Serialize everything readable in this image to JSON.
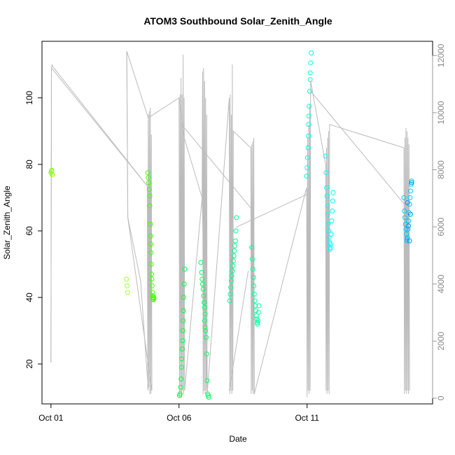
{
  "chart_data": {
    "type": "scatter",
    "title": "ATOM3 Southbound Solar_Zenith_Angle",
    "xlabel": "Date",
    "ylabel": "Solar_Zenith_Angle",
    "x_ticks": [
      {
        "day": 1,
        "label": "Oct 01"
      },
      {
        "day": 6,
        "label": "Oct 06"
      },
      {
        "day": 11,
        "label": "Oct 11"
      }
    ],
    "x_range_days": [
      0.65,
      15.9
    ],
    "ylim": [
      8,
      117
    ],
    "y_ticks": [
      20,
      40,
      60,
      80,
      100
    ],
    "right_axis": {
      "ylim": [
        -200,
        12500
      ],
      "ticks": [
        0,
        2000,
        4000,
        6000,
        8000,
        10000,
        12000
      ],
      "color": "#999999"
    },
    "grid": false,
    "point_colors": {
      "yellowgreen": "#80ff00",
      "green": "#00ff40",
      "lightgreen": "#00ff80",
      "cyan": "#00ffff",
      "skyblue": "#00bfff",
      "blue": "#0080ff"
    },
    "line_color": "#bbbbbb",
    "series": [
      {
        "color": "#80ff00",
        "points": [
          [
            1.0,
            77.5
          ],
          [
            1.02,
            78.0
          ],
          [
            1.05,
            77.0
          ],
          [
            1.03,
            78.2
          ]
        ]
      },
      {
        "color": "#a0ff30",
        "points": [
          [
            3.95,
            45.5
          ],
          [
            3.97,
            43.5
          ],
          [
            3.99,
            41.5
          ]
        ]
      },
      {
        "color": "#40ff00",
        "points": [
          [
            4.78,
            77.5
          ],
          [
            4.8,
            76.0
          ],
          [
            4.82,
            74.5
          ],
          [
            4.84,
            72.5
          ],
          [
            4.86,
            70.5
          ],
          [
            4.86,
            67.5
          ],
          [
            4.88,
            62.0
          ],
          [
            4.89,
            58.5
          ],
          [
            4.9,
            56.0
          ],
          [
            4.91,
            53.5
          ],
          [
            4.92,
            50.0
          ],
          [
            4.93,
            47.0
          ],
          [
            4.94,
            45.5
          ],
          [
            4.95,
            43.5
          ],
          [
            4.96,
            41.5
          ],
          [
            4.97,
            40.5
          ],
          [
            4.98,
            40.0
          ],
          [
            4.99,
            39.5
          ],
          [
            5.0,
            39.3
          ],
          [
            5.01,
            40.0
          ],
          [
            5.02,
            39.8
          ]
        ]
      },
      {
        "color": "#00ff40",
        "points": [
          [
            6.02,
            10.5
          ],
          [
            6.04,
            11.0
          ],
          [
            6.06,
            13.0
          ],
          [
            6.08,
            15.5
          ],
          [
            6.1,
            19.0
          ],
          [
            6.1,
            21.5
          ],
          [
            6.12,
            24.5
          ],
          [
            6.14,
            27.0
          ],
          [
            6.15,
            30.0
          ],
          [
            6.16,
            33.0
          ],
          [
            6.17,
            36.0
          ],
          [
            6.18,
            40.0
          ],
          [
            6.2,
            44.0
          ],
          [
            6.22,
            48.5
          ]
        ]
      },
      {
        "color": "#00ff60",
        "points": [
          [
            6.85,
            50.5
          ],
          [
            6.88,
            47.5
          ],
          [
            6.9,
            45.5
          ],
          [
            6.92,
            44.0
          ],
          [
            6.94,
            42.5
          ],
          [
            6.96,
            40.5
          ],
          [
            6.98,
            38.5
          ],
          [
            7.0,
            37.0
          ],
          [
            7.02,
            35.0
          ],
          [
            7.0,
            33.0
          ],
          [
            7.02,
            31.0
          ],
          [
            7.04,
            30.0
          ],
          [
            7.06,
            28.0
          ],
          [
            7.08,
            23.0
          ],
          [
            7.1,
            15.0
          ],
          [
            7.12,
            11.0
          ],
          [
            7.14,
            10.5
          ],
          [
            7.16,
            10.0
          ]
        ]
      },
      {
        "color": "#00ff90",
        "points": [
          [
            7.98,
            39.0
          ],
          [
            8.0,
            41.0
          ],
          [
            8.02,
            43.0
          ],
          [
            8.04,
            45.0
          ],
          [
            8.06,
            46.5
          ],
          [
            8.08,
            48.0
          ],
          [
            8.1,
            49.5
          ],
          [
            8.12,
            51.0
          ],
          [
            8.14,
            52.5
          ],
          [
            8.16,
            54.0
          ],
          [
            8.18,
            55.5
          ],
          [
            8.2,
            57.0
          ],
          [
            8.22,
            60.0
          ],
          [
            8.24,
            64.0
          ]
        ]
      },
      {
        "color": "#00ffa0",
        "points": [
          [
            8.84,
            55.0
          ],
          [
            8.86,
            51.5
          ],
          [
            8.88,
            48.5
          ],
          [
            8.9,
            46.0
          ],
          [
            8.92,
            43.5
          ],
          [
            8.94,
            41.0
          ],
          [
            8.96,
            39.0
          ],
          [
            8.98,
            37.5
          ],
          [
            9.0,
            36.0
          ],
          [
            9.02,
            34.5
          ],
          [
            9.04,
            33.5
          ],
          [
            9.06,
            32.5
          ],
          [
            9.06,
            32.0
          ],
          [
            9.08,
            33.0
          ],
          [
            9.1,
            35.5
          ],
          [
            9.12,
            37.5
          ]
        ]
      },
      {
        "color": "#00ffe0",
        "points": [
          [
            10.98,
            76.5
          ],
          [
            11.0,
            79.0
          ],
          [
            11.02,
            82.0
          ],
          [
            11.04,
            85.0
          ],
          [
            11.05,
            88.5
          ],
          [
            11.06,
            92.0
          ],
          [
            11.07,
            94.5
          ],
          [
            11.08,
            97.5
          ],
          [
            11.1,
            102.0
          ],
          [
            11.12,
            105.5
          ],
          [
            11.12,
            107.5
          ],
          [
            11.14,
            110.5
          ],
          [
            11.16,
            113.5
          ]
        ]
      },
      {
        "color": "#00ffff",
        "points": [
          [
            11.72,
            82.5
          ],
          [
            11.74,
            77.5
          ],
          [
            11.76,
            73.0
          ],
          [
            11.78,
            70.5
          ],
          [
            11.8,
            67.5
          ],
          [
            11.8,
            65.0
          ],
          [
            11.82,
            62.0
          ],
          [
            11.84,
            60.0
          ],
          [
            11.86,
            58.0
          ],
          [
            11.88,
            56.5
          ],
          [
            11.9,
            55.0
          ],
          [
            11.9,
            54.5
          ],
          [
            11.92,
            56.0
          ],
          [
            11.94,
            59.0
          ],
          [
            11.96,
            63.0
          ],
          [
            11.98,
            66.0
          ],
          [
            12.0,
            69.0
          ],
          [
            12.02,
            71.5
          ]
        ]
      },
      {
        "color": "#00c8ff",
        "points": [
          [
            14.78,
            70.0
          ],
          [
            14.8,
            66.0
          ],
          [
            14.82,
            64.0
          ],
          [
            14.84,
            62.0
          ],
          [
            14.86,
            60.5
          ],
          [
            14.88,
            59.0
          ],
          [
            14.9,
            57.5
          ],
          [
            14.9,
            57.0
          ],
          [
            14.92,
            58.0
          ],
          [
            14.94,
            60.5
          ],
          [
            14.96,
            63.0
          ],
          [
            14.98,
            65.5
          ],
          [
            15.0,
            68.0
          ],
          [
            15.02,
            70.0
          ],
          [
            15.04,
            72.0
          ],
          [
            15.06,
            74.0
          ],
          [
            15.08,
            75.0
          ]
        ]
      },
      {
        "color": "#0090ff",
        "points": [
          [
            14.92,
            68.5
          ],
          [
            14.96,
            61.5
          ],
          [
            15.0,
            57.0
          ],
          [
            15.04,
            65.0
          ],
          [
            15.08,
            74.5
          ]
        ]
      }
    ],
    "altitude_line_days": [
      [
        1.0,
        20.5
      ],
      [
        1.02,
        109
      ],
      [
        1.04,
        110
      ],
      [
        1.06,
        109.5
      ],
      [
        4.76,
        73.5
      ],
      [
        4.78,
        12.5
      ],
      [
        4.8,
        95
      ],
      [
        4.82,
        13
      ],
      [
        4.84,
        96
      ],
      [
        4.86,
        11
      ],
      [
        4.88,
        97
      ],
      [
        4.9,
        11
      ],
      [
        4.92,
        89
      ],
      [
        4.94,
        12
      ],
      [
        4.0,
        64
      ],
      [
        3.96,
        114
      ],
      [
        4.8,
        94
      ],
      [
        6.0,
        100
      ],
      [
        6.02,
        10
      ],
      [
        6.04,
        101
      ],
      [
        6.06,
        11
      ],
      [
        6.08,
        106
      ],
      [
        6.1,
        10
      ],
      [
        6.12,
        101
      ],
      [
        6.14,
        12
      ],
      [
        6.16,
        113
      ],
      [
        6.18,
        11
      ],
      [
        6.2,
        100
      ],
      [
        6.22,
        12
      ],
      [
        6.9,
        70
      ],
      [
        6.92,
        108
      ],
      [
        6.94,
        11
      ],
      [
        6.96,
        109
      ],
      [
        6.98,
        12
      ],
      [
        7.0,
        105
      ],
      [
        7.02,
        11
      ],
      [
        7.04,
        100
      ],
      [
        7.06,
        12
      ],
      [
        7.08,
        95
      ],
      [
        7.1,
        11
      ],
      [
        7.96,
        100
      ],
      [
        7.98,
        11
      ],
      [
        8.0,
        101
      ],
      [
        8.02,
        12
      ],
      [
        8.04,
        95
      ],
      [
        8.06,
        11
      ],
      [
        8.08,
        110
      ],
      [
        8.1,
        12
      ],
      [
        8.12,
        90
      ],
      [
        8.8,
        85
      ],
      [
        8.82,
        11
      ],
      [
        8.84,
        86
      ],
      [
        8.86,
        12
      ],
      [
        8.88,
        87
      ],
      [
        8.9,
        11
      ],
      [
        8.92,
        88
      ],
      [
        8.94,
        11
      ],
      [
        10.98,
        73
      ],
      [
        11.0,
        10
      ],
      [
        11.02,
        88
      ],
      [
        11.04,
        12
      ],
      [
        11.06,
        92
      ],
      [
        11.08,
        11
      ],
      [
        11.1,
        98
      ],
      [
        11.12,
        12
      ],
      [
        11.14,
        105
      ],
      [
        11.72,
        80
      ],
      [
        11.74,
        12
      ],
      [
        11.76,
        85
      ],
      [
        11.78,
        11
      ],
      [
        11.8,
        88
      ],
      [
        11.82,
        12
      ],
      [
        11.84,
        90
      ],
      [
        11.86,
        11
      ],
      [
        11.88,
        92
      ],
      [
        14.78,
        85
      ],
      [
        14.8,
        11
      ],
      [
        14.82,
        88
      ],
      [
        14.84,
        12
      ],
      [
        14.86,
        91
      ],
      [
        14.88,
        11
      ],
      [
        14.9,
        90
      ],
      [
        14.92,
        12
      ],
      [
        14.94,
        88
      ],
      [
        14.96,
        11
      ],
      [
        14.98,
        86
      ],
      [
        15.0,
        12
      ]
    ],
    "connector_lines": [
      [
        [
          1.0,
          20.5
        ],
        [
          1.02,
          109
        ],
        [
          4.76,
          73.5
        ]
      ],
      [
        [
          3.96,
          114
        ],
        [
          4.0,
          64
        ],
        [
          4.5,
          45
        ],
        [
          4.8,
          12
        ]
      ],
      [
        [
          6.0,
          100
        ],
        [
          6.2,
          88
        ],
        [
          6.9,
          70
        ],
        [
          7.1,
          13
        ]
      ],
      [
        [
          6.1,
          92
        ],
        [
          8.9,
          66
        ]
      ],
      [
        [
          7.96,
          12
        ],
        [
          8.7,
          48
        ]
      ],
      [
        [
          8.2,
          61
        ],
        [
          11.0,
          71
        ]
      ],
      [
        [
          11.14,
          102
        ],
        [
          14.8,
          68
        ]
      ]
    ]
  }
}
